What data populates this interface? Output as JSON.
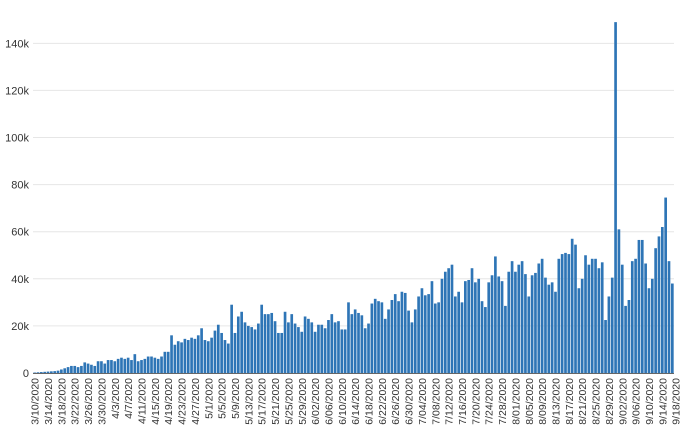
{
  "chart_data": {
    "type": "bar",
    "title": "",
    "xlabel": "",
    "ylabel": "",
    "ylim": [
      0,
      155000
    ],
    "grid": true,
    "bar_color": "#2e75b6",
    "grid_color": "#e6e6e6",
    "y_ticks": [
      {
        "value": 0,
        "label": "0"
      },
      {
        "value": 20000,
        "label": "20k"
      },
      {
        "value": 40000,
        "label": "40k"
      },
      {
        "value": 60000,
        "label": "60k"
      },
      {
        "value": 80000,
        "label": "80k"
      },
      {
        "value": 100000,
        "label": "100k"
      },
      {
        "value": 120000,
        "label": "120k"
      },
      {
        "value": 140000,
        "label": "140k"
      }
    ],
    "x_start": "3/10/2020",
    "x_tick_labels": [
      "3/10/2020",
      "3/14/2020",
      "3/18/2020",
      "3/22/2020",
      "3/26/2020",
      "3/30/2020",
      "4/3/2020",
      "4/7/2020",
      "4/11/2020",
      "4/15/2020",
      "4/19/2020",
      "4/23/2020",
      "4/27/2020",
      "5/1/2020",
      "5/5/2020",
      "5/9/2020",
      "5/13/2020",
      "5/17/2020",
      "5/21/2020",
      "5/25/2020",
      "5/29/2020",
      "6/02/2020",
      "6/06/2020",
      "6/10/2020",
      "6/14/2020",
      "6/18/2020",
      "6/22/2020",
      "6/26/2020",
      "6/30/2020",
      "7/04/2020",
      "7/08/2020",
      "7/12/2020",
      "7/16/2020",
      "7/20/2020",
      "7/24/2020",
      "7/28/2020",
      "8/01/2020",
      "8/05/2020",
      "8/09/2020",
      "8/13/2020",
      "8/17/2020",
      "8/21/2020",
      "8/25/2020",
      "8/29/2020",
      "9/02/2020",
      "9/06/2020",
      "9/10/2020",
      "9/14/2020",
      "9/18/2020"
    ],
    "values": [
      200,
      300,
      400,
      500,
      600,
      700,
      800,
      1000,
      1500,
      2000,
      2500,
      3000,
      3000,
      2500,
      3000,
      4500,
      4000,
      3500,
      3000,
      5000,
      5000,
      4000,
      5500,
      5500,
      5000,
      6000,
      6500,
      6000,
      6500,
      5500,
      8000,
      5000,
      5500,
      6000,
      7000,
      7000,
      6500,
      6000,
      7000,
      9000,
      9000,
      16000,
      12000,
      13500,
      13000,
      14500,
      14000,
      15000,
      14500,
      16000,
      19000,
      14000,
      13500,
      15000,
      18000,
      20500,
      17000,
      14000,
      12500,
      29000,
      17000,
      24000,
      26000,
      21500,
      20000,
      19500,
      18500,
      21000,
      29000,
      25000,
      25000,
      25500,
      22000,
      17000,
      17000,
      26000,
      21500,
      25000,
      21000,
      19500,
      17500,
      24000,
      23000,
      21500,
      17500,
      20500,
      20500,
      19000,
      22500,
      25000,
      21500,
      22000,
      18500,
      18500,
      30000,
      25000,
      27000,
      25500,
      24500,
      19000,
      21000,
      29500,
      31500,
      30500,
      30000,
      23000,
      27000,
      31000,
      33500,
      30500,
      34500,
      34000,
      26500,
      21500,
      27000,
      32500,
      36000,
      33000,
      33500,
      39000,
      29500,
      30000,
      40000,
      43000,
      44500,
      46000,
      32500,
      34500,
      30000,
      39000,
      39500,
      44500,
      38500,
      40000,
      30500,
      28000,
      38500,
      41500,
      49500,
      41000,
      39000,
      28500,
      43000,
      47500,
      43000,
      46000,
      47500,
      42000,
      32500,
      41500,
      42500,
      46500,
      48500,
      40500,
      37500,
      38500,
      34500,
      48500,
      50500,
      51000,
      50500,
      57000,
      54500,
      36000,
      40000,
      50000,
      46000,
      48500,
      48500,
      44500,
      47000,
      22500,
      32500,
      40500,
      149000,
      61000,
      46000,
      28500,
      31000,
      47500,
      48500,
      56500,
      56500,
      46500,
      36000,
      40000,
      53000,
      58000,
      62000,
      74500,
      47500,
      38000
    ]
  }
}
